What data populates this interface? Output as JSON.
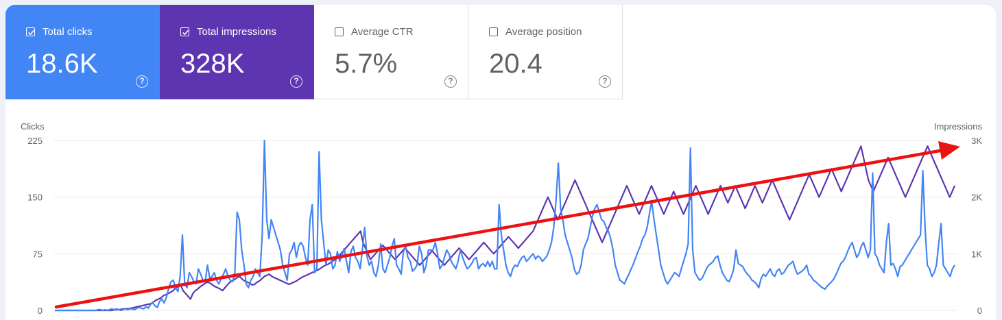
{
  "metrics": [
    {
      "label": "Total clicks",
      "value": "18.6K",
      "checked": true,
      "color": "#4285f4"
    },
    {
      "label": "Total impressions",
      "value": "328K",
      "checked": true,
      "color": "#5e35b1"
    },
    {
      "label": "Average CTR",
      "value": "5.7%",
      "checked": false,
      "color": "#ffffff"
    },
    {
      "label": "Average position",
      "value": "20.4",
      "checked": false,
      "color": "#ffffff"
    }
  ],
  "help_glyph": "?",
  "chart_data": {
    "type": "line",
    "title": "",
    "xlabel": "",
    "ylabel_left": "Clicks",
    "ylabel_right": "Impressions",
    "y_left_ticks": [
      "0",
      "75",
      "150",
      "225"
    ],
    "y_right_ticks": [
      "0",
      "1K",
      "2K",
      "3K"
    ],
    "ylim_left": [
      0,
      225
    ],
    "ylim_right": [
      0,
      3000
    ],
    "grid": true,
    "legend": "none",
    "series": [
      {
        "name": "Total clicks",
        "axis": "left",
        "color": "#4285f4",
        "values": [
          0,
          0,
          0,
          0,
          0,
          0,
          0,
          0,
          0,
          0,
          0,
          0,
          0,
          0,
          0,
          0,
          0,
          0,
          0,
          1,
          1,
          0,
          1,
          0,
          1,
          2,
          1,
          2,
          1,
          0,
          1,
          2,
          1,
          2,
          2,
          1,
          3,
          4,
          3,
          2,
          5,
          3,
          8,
          10,
          6,
          4,
          12,
          15,
          10,
          18,
          30,
          38,
          40,
          30,
          25,
          45,
          100,
          35,
          30,
          50,
          45,
          38,
          35,
          55,
          48,
          40,
          38,
          60,
          42,
          45,
          50,
          40,
          35,
          42,
          48,
          55,
          45,
          40,
          38,
          50,
          130,
          120,
          80,
          60,
          35,
          30,
          40,
          45,
          55,
          50,
          45,
          100,
          225,
          120,
          95,
          120,
          110,
          100,
          90,
          80,
          60,
          50,
          40,
          75,
          80,
          90,
          70,
          85,
          90,
          85,
          70,
          60,
          120,
          140,
          50,
          55,
          210,
          120,
          90,
          60,
          80,
          75,
          55,
          60,
          78,
          65,
          72,
          82,
          65,
          50,
          78,
          85,
          70,
          65,
          55,
          80,
          110,
          72,
          60,
          65,
          50,
          45,
          60,
          88,
          55,
          50,
          60,
          70,
          85,
          95,
          60,
          55,
          48,
          78,
          85,
          70,
          65,
          52,
          55,
          60,
          85,
          75,
          50,
          60,
          80,
          80,
          80,
          90,
          75,
          55,
          60,
          70,
          80,
          75,
          65,
          60,
          55,
          65,
          80,
          70,
          62,
          55,
          58,
          62,
          68,
          70,
          55,
          60,
          62,
          58,
          65,
          58,
          65,
          55,
          55,
          140,
          100,
          80,
          60,
          50,
          45,
          55,
          60,
          58,
          65,
          70,
          72,
          65,
          68,
          72,
          75,
          68,
          72,
          70,
          65,
          68,
          72,
          80,
          90,
          110,
          145,
          195,
          135,
          120,
          100,
          90,
          80,
          70,
          55,
          48,
          50,
          60,
          80,
          88,
          95,
          110,
          125,
          135,
          140,
          130,
          120,
          118,
          110,
          105,
          95,
          80,
          60,
          50,
          40,
          38,
          35,
          42,
          48,
          55,
          62,
          70,
          78,
          85,
          95,
          100,
          110,
          128,
          145,
          120,
          100,
          80,
          60,
          50,
          40,
          35,
          40,
          45,
          50,
          48,
          45,
          55,
          65,
          75,
          88,
          215,
          80,
          50,
          45,
          40,
          42,
          48,
          55,
          60,
          62,
          65,
          70,
          72,
          60,
          50,
          45,
          40,
          38,
          45,
          55,
          80,
          62,
          60,
          58,
          52,
          48,
          45,
          40,
          38,
          35,
          30,
          42,
          48,
          45,
          50,
          55,
          48,
          45,
          52,
          55,
          48,
          50,
          55,
          60,
          62,
          65,
          55,
          48,
          50,
          52,
          55,
          60,
          48,
          45,
          40,
          38,
          35,
          32,
          30,
          28,
          32,
          35,
          38,
          42,
          48,
          55,
          62,
          65,
          70,
          78,
          85,
          90,
          80,
          70,
          75,
          85,
          90,
          80,
          70,
          80,
          182,
          75,
          70,
          60,
          55,
          50,
          90,
          115,
          60,
          62,
          55,
          45,
          58,
          60,
          65,
          70,
          75,
          80,
          85,
          90,
          95,
          100,
          185,
          110,
          60,
          55,
          45,
          50,
          60,
          88,
          115,
          60,
          55,
          50,
          45,
          55,
          60
        ]
      },
      {
        "name": "Total impressions",
        "axis": "right",
        "color": "#5e35b1",
        "values": [
          0,
          0,
          0,
          0,
          0,
          0,
          0,
          0,
          0,
          0,
          0,
          0,
          0,
          0,
          0,
          0,
          0,
          0,
          0,
          0,
          0,
          0,
          0,
          0,
          10,
          10,
          15,
          20,
          25,
          30,
          30,
          40,
          50,
          60,
          70,
          80,
          90,
          100,
          110,
          120,
          150,
          180,
          200,
          220,
          260,
          280,
          300,
          320,
          350,
          400,
          420,
          450,
          350,
          300,
          250,
          200,
          300,
          350,
          380,
          420,
          450,
          480,
          500,
          480,
          450,
          420,
          400,
          380,
          350,
          400,
          450,
          500,
          520,
          550,
          580,
          600,
          550,
          520,
          500,
          480,
          450,
          460,
          500,
          520,
          560,
          600,
          620,
          640,
          600,
          580,
          560,
          540,
          520,
          500,
          480,
          460,
          480,
          500,
          520,
          550,
          580,
          600,
          620,
          640,
          660,
          680,
          700,
          720,
          750,
          780,
          800,
          820,
          850,
          880,
          900,
          950,
          1000,
          1050,
          1100,
          1150,
          1200,
          1250,
          1300,
          1350,
          1400,
          1200,
          1100,
          1000,
          900,
          950,
          1000,
          1050,
          1100,
          1150,
          1100,
          1050,
          1000,
          950,
          900,
          950,
          1000,
          1050,
          1100,
          1050,
          1000,
          950,
          900,
          850,
          800,
          850,
          900,
          950,
          1000,
          1050,
          1000,
          950,
          900,
          850,
          800,
          850,
          900,
          950,
          1000,
          1050,
          1100,
          1050,
          1000,
          950,
          900,
          950,
          1000,
          1050,
          1100,
          1150,
          1200,
          1150,
          1100,
          1050,
          1000,
          1050,
          1100,
          1150,
          1200,
          1250,
          1300,
          1250,
          1200,
          1150,
          1100,
          1150,
          1200,
          1250,
          1300,
          1350,
          1400,
          1500,
          1600,
          1700,
          1800,
          1900,
          2000,
          1900,
          1800,
          1700,
          1600,
          1700,
          1800,
          1900,
          2000,
          2100,
          2200,
          2300,
          2200,
          2100,
          2000,
          1900,
          1800,
          1700,
          1600,
          1500,
          1400,
          1300,
          1200,
          1300,
          1400,
          1500,
          1600,
          1700,
          1800,
          1900,
          2000,
          2100,
          2200,
          2100,
          2000,
          1900,
          1800,
          1700,
          1800,
          1900,
          2000,
          2100,
          2200,
          2100,
          2000,
          1900,
          1800,
          1700,
          1800,
          1900,
          2000,
          2100,
          2000,
          1900,
          1800,
          1700,
          1800,
          1900,
          2000,
          2100,
          2200,
          2100,
          2000,
          1900,
          1800,
          1700,
          1800,
          1900,
          2000,
          2100,
          2200,
          2100,
          2000,
          1900,
          2000,
          2100,
          2200,
          2100,
          2000,
          1900,
          1800,
          1900,
          2000,
          2100,
          2200,
          2100,
          2000,
          1900,
          2000,
          2100,
          2200,
          2300,
          2200,
          2100,
          2000,
          1900,
          1800,
          1700,
          1600,
          1700,
          1800,
          1900,
          2000,
          2100,
          2200,
          2300,
          2400,
          2300,
          2200,
          2100,
          2000,
          2100,
          2200,
          2300,
          2400,
          2500,
          2400,
          2300,
          2200,
          2100,
          2200,
          2300,
          2400,
          2500,
          2600,
          2700,
          2800,
          2900,
          2700,
          2500,
          2300,
          2200,
          2100,
          2200,
          2300,
          2400,
          2500,
          2600,
          2700,
          2600,
          2500,
          2400,
          2300,
          2200,
          2100,
          2000,
          2100,
          2200,
          2300,
          2400,
          2500,
          2600,
          2700,
          2800,
          2900,
          2800,
          2700,
          2600,
          2500,
          2400,
          2300,
          2200,
          2100,
          2000,
          2100,
          2200
        ]
      }
    ],
    "annotation": {
      "type": "arrow",
      "color": "#ee1111",
      "direction": "upward trend"
    }
  }
}
